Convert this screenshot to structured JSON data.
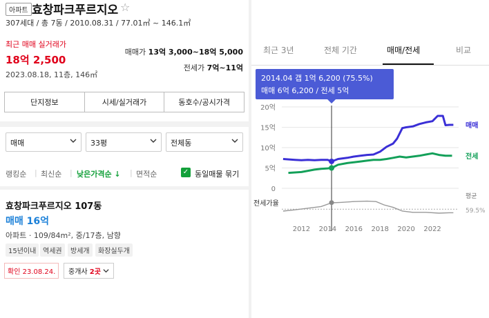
{
  "header": {
    "badge": "아파트",
    "title": "효창파크푸르지오",
    "summary": "307세대 / 총 7동 / 2010.08.31 / 77.01㎡ ~ 146.1㎡"
  },
  "recent": {
    "label": "최근 매매 실거래가",
    "price": "18억 2,500",
    "info": "2023.08.18, 11층, 146㎡",
    "sale_range_label": "매매가",
    "sale_range": "13억 3,000~18억 5,000",
    "jeonse_range_label": "전세가",
    "jeonse_range": "7억~11억"
  },
  "buttons": [
    "단지정보",
    "시세/실거래가",
    "동호수/공시가격"
  ],
  "filters": {
    "type": "매매",
    "size": "33평",
    "dong": "전체동"
  },
  "sort": {
    "items": [
      "랭킹순",
      "최신순",
      "낮은가격순 ↓",
      "면적순"
    ],
    "active_index": 2,
    "checkbox_label": "동일매물 묶기"
  },
  "listing": {
    "name": "효창파크푸르지오 107동",
    "price": "매매 16억",
    "info": "아파트 · 109/84m², 중/17층, 남향",
    "tags": [
      "15년이내",
      "역세권",
      "방세개",
      "화장실두개"
    ],
    "confirm": "확인 23.08.24.",
    "agent_prefix": "중개사 ",
    "agent_count": "2곳"
  },
  "tabs": [
    "최근 3년",
    "전체 기간",
    "매매/전세",
    "비교"
  ],
  "active_tab": 2,
  "chart_data": {
    "type": "line",
    "tooltip": {
      "line1": "2014.04  갭 1억 6,200 (75.5%)",
      "line2": "매매 6억 6,200 / 전세 5억"
    },
    "x_ticks": [
      "2012",
      "2014",
      "2016",
      "2018",
      "2020",
      "2022"
    ],
    "xlim": [
      2010.5,
      2024
    ],
    "y_ticks": [
      "20억",
      "15억",
      "10억",
      "5억",
      "0"
    ],
    "ylim": [
      0,
      20
    ],
    "cursor_x": 2014.3,
    "series": [
      {
        "name": "매매",
        "color": "#3a2fd6",
        "x": [
          2010.6,
          2011.5,
          2012.0,
          2012.5,
          2013.0,
          2013.5,
          2014.0,
          2014.3,
          2014.8,
          2015.5,
          2016.0,
          2016.5,
          2017.0,
          2017.5,
          2018.0,
          2018.5,
          2019.0,
          2019.3,
          2019.7,
          2020.0,
          2020.5,
          2021.0,
          2021.5,
          2022.0,
          2022.4,
          2022.8,
          2023.0,
          2023.3,
          2023.6
        ],
        "values": [
          7.2,
          7.0,
          6.9,
          7.0,
          6.9,
          7.0,
          7.0,
          6.6,
          7.2,
          7.5,
          7.8,
          8.0,
          8.2,
          8.3,
          9.0,
          10.2,
          11.0,
          12.2,
          14.8,
          15.0,
          15.2,
          15.8,
          16.2,
          16.5,
          17.8,
          17.8,
          15.5,
          15.6,
          15.6
        ]
      },
      {
        "name": "전세",
        "color": "#13a059",
        "x": [
          2011.0,
          2012.0,
          2012.5,
          2013.0,
          2013.5,
          2014.0,
          2014.3,
          2014.8,
          2015.5,
          2016.0,
          2016.5,
          2017.0,
          2017.5,
          2018.0,
          2018.5,
          2019.0,
          2019.5,
          2020.0,
          2020.5,
          2021.0,
          2021.5,
          2022.0,
          2022.5,
          2023.0,
          2023.5
        ],
        "values": [
          3.8,
          4.0,
          4.3,
          4.6,
          4.8,
          4.9,
          5.0,
          5.8,
          6.2,
          6.4,
          6.6,
          6.8,
          7.0,
          7.0,
          7.2,
          7.5,
          7.8,
          7.6,
          7.8,
          8.0,
          8.3,
          8.6,
          8.2,
          8.0,
          8.0
        ]
      }
    ],
    "ratio": {
      "label": "전세가율",
      "avg_label": "평균",
      "avg_value": "59.5%",
      "x": [
        2010.6,
        2011.5,
        2012.5,
        2013.5,
        2014.3,
        2015.0,
        2016.0,
        2017.0,
        2017.7,
        2018.3,
        2019.0,
        2019.7,
        2020.5,
        2021.5,
        2022.5,
        2023.3,
        2023.6
      ],
      "values": [
        55,
        58,
        62,
        66,
        75,
        76,
        78,
        79,
        78,
        70,
        64,
        55,
        52,
        52,
        50,
        51,
        51
      ]
    }
  }
}
